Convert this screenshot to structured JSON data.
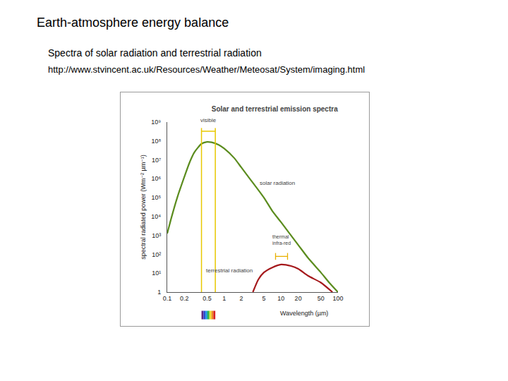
{
  "header": {
    "title": "Earth-atmosphere energy balance",
    "subtitle": "Spectra of solar radiation and terrestrial radiation",
    "source": "http://www.stvincent.ac.uk/Resources/Weather/Meteosat/System/imaging.html"
  },
  "chart_data": {
    "type": "line",
    "title": "Solar and terrestrial emission spectra",
    "x_label": "Wavelength (µm)",
    "y_label": "spectral radiated power (Wm⁻² µm⁻¹)",
    "log": true,
    "grid": false,
    "xlim": [
      0.1,
      100
    ],
    "ylim": [
      1,
      1000000000
    ],
    "xticks": [
      0.1,
      0.2,
      0.5,
      1,
      2,
      5,
      10,
      20,
      50,
      100
    ],
    "yticks": [
      1,
      {
        "value": 10,
        "label": "10¹"
      },
      {
        "value": 100,
        "label": "10²"
      },
      {
        "value": 1000,
        "label": "10³"
      },
      {
        "value": 10000,
        "label": "10⁴"
      },
      {
        "value": 100000,
        "label": "10⁵"
      },
      {
        "value": 1000000,
        "label": "10⁶"
      },
      {
        "value": 10000000,
        "label": "10⁷"
      },
      {
        "value": 100000000,
        "label": "10⁸"
      },
      {
        "value": 1000000000,
        "label": "10⁹"
      }
    ],
    "series": [
      {
        "name": "solar radiation",
        "color": "#5b8c1e",
        "x": [
          0.1,
          0.12,
          0.15,
          0.2,
          0.25,
          0.3,
          0.4,
          0.5,
          0.6,
          0.8,
          1,
          1.5,
          2,
          3,
          5,
          7,
          10,
          20,
          30,
          50,
          70,
          100
        ],
        "values": [
          1259,
          10000,
          100000,
          1260000,
          7900000,
          25000000,
          71000000,
          89000000,
          85000000,
          63000000,
          40000000,
          12600000,
          4000000,
          790000,
          100000,
          20000,
          5000,
          316,
          63,
          11,
          3.2,
          1
        ]
      },
      {
        "name": "terrestrial radiation",
        "color": "#a5191c",
        "x": [
          3.2,
          4,
          5,
          7,
          10,
          15,
          20,
          30,
          50,
          80
        ],
        "values": [
          1,
          4.7,
          11,
          20,
          29,
          24,
          17,
          7.2,
          3.2,
          1
        ]
      }
    ],
    "annotations": [
      {
        "text": "visible",
        "band": [
          0.4,
          0.7
        ],
        "color": "#e8c800"
      },
      {
        "text": [
          "thermal",
          "infra-red"
        ],
        "band": [
          8,
          13
        ],
        "color": "#e8b000"
      }
    ]
  }
}
